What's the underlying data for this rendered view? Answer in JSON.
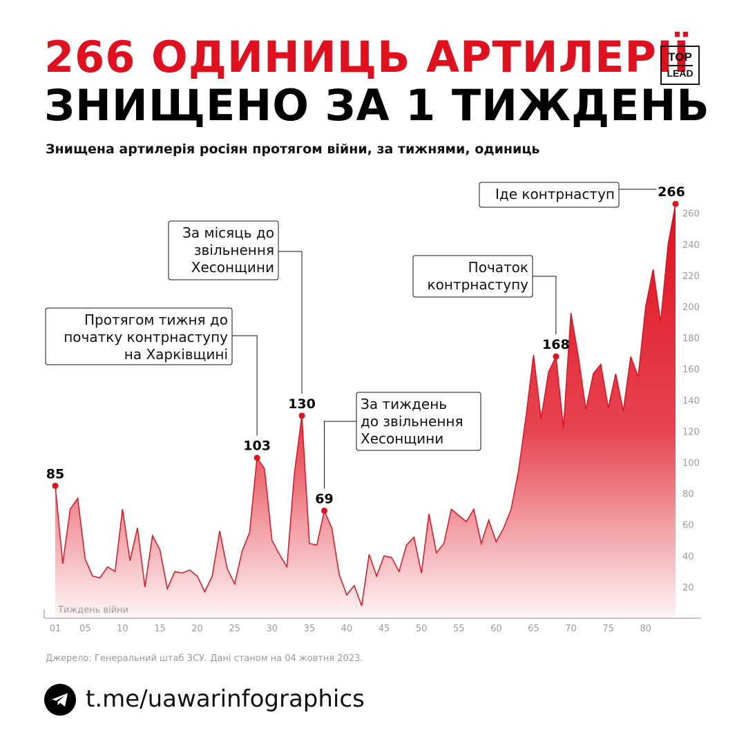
{
  "headline": {
    "line1": "266 ОДИНИЦЬ АРТИЛЕРІЇ",
    "line2": "ЗНИЩЕНО ЗА 1 ТИЖДЕНЬ"
  },
  "logo": {
    "top": "TOP",
    "bottom": "LEAD"
  },
  "subtitle": "Знищена артилерія росіян протягом війни, за тижнями, одиниць",
  "colors": {
    "accent": "#e0101f",
    "text": "#111111",
    "muted": "#9a9a9a"
  },
  "chart_data": {
    "type": "area",
    "title": "",
    "xlabel": "Тиждень війни",
    "ylabel": "",
    "ylim": [
      0,
      270
    ],
    "y_ticks": [
      20,
      40,
      60,
      80,
      100,
      120,
      140,
      160,
      180,
      200,
      220,
      240,
      260
    ],
    "x_ticks": [
      "01",
      "05",
      "10",
      "15",
      "20",
      "25",
      "30",
      "35",
      "40",
      "45",
      "50",
      "55",
      "60",
      "65",
      "70",
      "75",
      "80"
    ],
    "x_tick_weeks": [
      1,
      5,
      10,
      15,
      20,
      25,
      30,
      35,
      40,
      45,
      50,
      55,
      60,
      65,
      70,
      75,
      80
    ],
    "grid": false,
    "series": [
      {
        "values": [
          85,
          35,
          70,
          77,
          38,
          27,
          26,
          33,
          30,
          70,
          37,
          58,
          20,
          53,
          44,
          19,
          30,
          29,
          31,
          27,
          17,
          27,
          56,
          32,
          22,
          43,
          55,
          103,
          96,
          50,
          41,
          33,
          93,
          130,
          48,
          47,
          69,
          58,
          28,
          15,
          21,
          8,
          41,
          27,
          40,
          39,
          30,
          47,
          52,
          29,
          67,
          42,
          48,
          70,
          66,
          62,
          70,
          48,
          63,
          49,
          58,
          70,
          95,
          130,
          169,
          128,
          158,
          168,
          122,
          196,
          168,
          134,
          157,
          163,
          135,
          157,
          133,
          168,
          155,
          200,
          224,
          190,
          240,
          266
        ]
      }
    ],
    "data_labels": [
      {
        "week": 1,
        "label": "85"
      },
      {
        "week": 28,
        "label": "103"
      },
      {
        "week": 34,
        "label": "130"
      },
      {
        "week": 37,
        "label": "69"
      },
      {
        "week": 68,
        "label": "168"
      },
      {
        "week": 84,
        "label": "266"
      }
    ],
    "annotations": [
      {
        "week": 28,
        "lines": [
          "Протягом тижня до",
          "початку контрнаступу",
          "на Харківщині"
        ]
      },
      {
        "week": 34,
        "lines": [
          "За місяць до",
          "звільнення",
          "Хесонщини"
        ]
      },
      {
        "week": 37,
        "lines": [
          "За тиждень",
          "до звільнення",
          "Хесонщини"
        ]
      },
      {
        "week": 68,
        "lines": [
          "Початок",
          "контрнаступу"
        ]
      },
      {
        "week": 84,
        "lines": [
          "Іде контрнаступ"
        ]
      }
    ]
  },
  "source": "Джерело: Генеральний штаб ЗСУ. Дані станом на 04 жовтня 2023.",
  "footer": {
    "link": "t.me/uawarinfographics",
    "icon": "telegram-icon"
  }
}
